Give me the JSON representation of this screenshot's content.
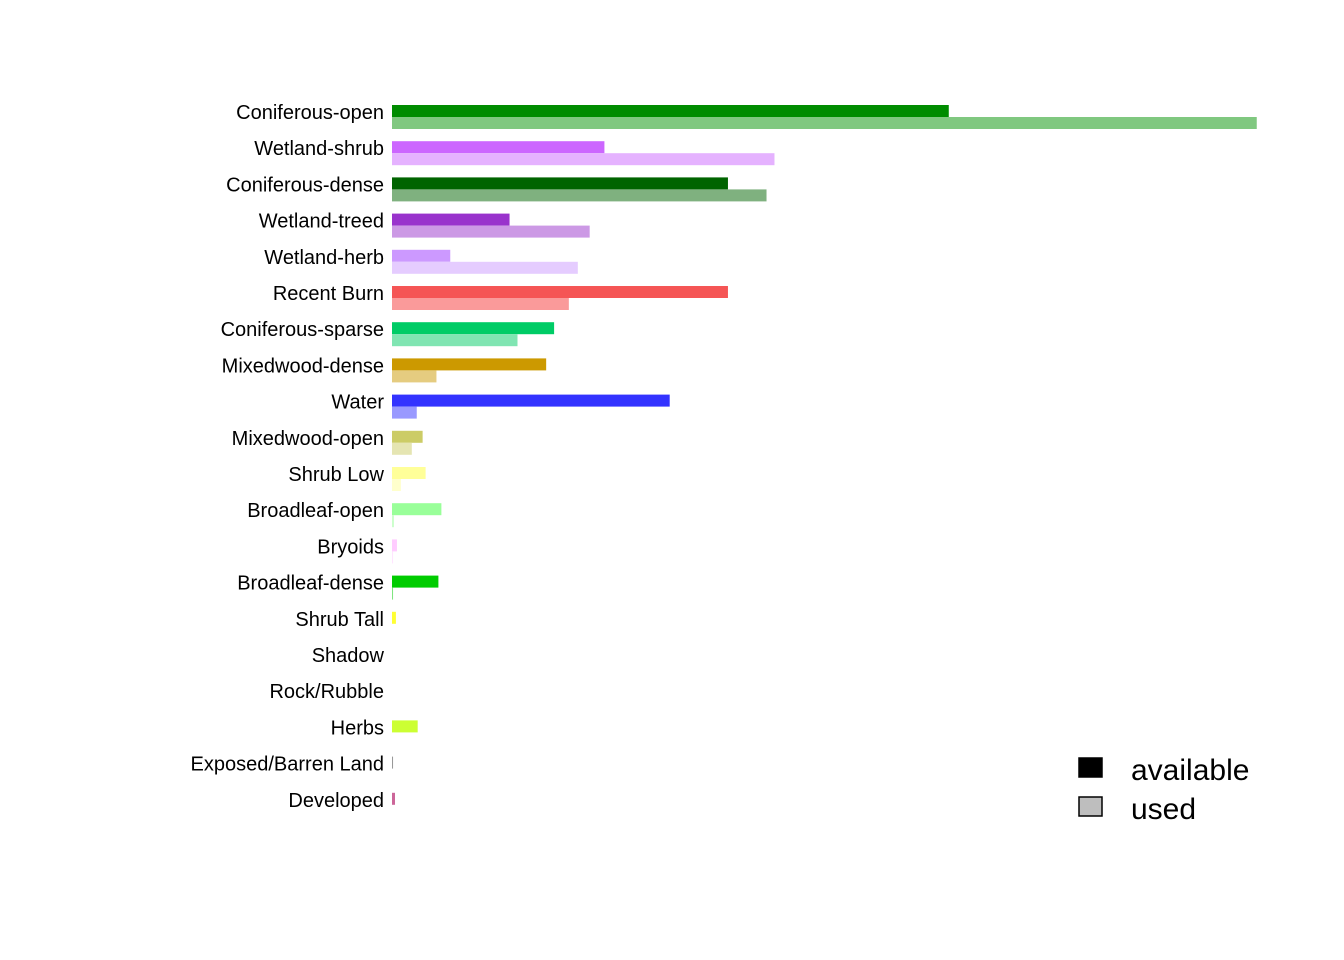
{
  "chart_data": {
    "type": "bar",
    "orientation": "horizontal",
    "axes_visible": false,
    "grid": false,
    "legend_position": "bottom-right",
    "legend": {
      "items": [
        {
          "label": "available",
          "swatch_color": "#000000"
        },
        {
          "label": "used",
          "swatch_color": "#bebebe"
        }
      ]
    },
    "categories": [
      "Coniferous-open",
      "Wetland-shrub",
      "Coniferous-dense",
      "Wetland-treed",
      "Wetland-herb",
      "Recent Burn",
      "Coniferous-sparse",
      "Mixedwood-dense",
      "Water",
      "Mixedwood-open",
      "Shrub Low",
      "Broadleaf-open",
      "Bryoids",
      "Broadleaf-dense",
      "Shrub Tall",
      "Shadow",
      "Rock/Rubble",
      "Herbs",
      "Exposed/Barren Land",
      "Developed"
    ],
    "colors_available": [
      "#008c00",
      "#cc66ff",
      "#006400",
      "#9933cc",
      "#cc99ff",
      "#f55555",
      "#00cc66",
      "#cc9900",
      "#3333ff",
      "#cccc66",
      "#ffff99",
      "#99ff99",
      "#ffccff",
      "#00cc00",
      "#ffff33",
      "#c0c0c0",
      "#a0a0a0",
      "#ccff33",
      "#999999",
      "#cc6699"
    ],
    "colors_used": [
      "#80c880",
      "#e5b2ff",
      "#7fb17f",
      "#cc99e5",
      "#e5ccff",
      "#fa9a9a",
      "#80e5b2",
      "#e5cc80",
      "#9999ff",
      "#e5e5b2",
      "#ffffcc",
      "#ccffcc",
      "#ffe5ff",
      "#80e580",
      "#ffff99",
      "#e0e0e0",
      "#d0d0d0",
      "#e5ff99",
      "#cccccc",
      "#e5b2cc"
    ],
    "series": [
      {
        "name": "available",
        "values": [
          0.4836,
          0.1845,
          0.2918,
          0.1021,
          0.0506,
          0.2918,
          0.1408,
          0.1339,
          0.2412,
          0.0266,
          0.0292,
          0.0429,
          0.0043,
          0.0403,
          0.0034,
          0.0,
          0.0,
          0.0223,
          0.0009,
          0.0026
        ]
      },
      {
        "name": "used",
        "values": [
          0.7511,
          0.3322,
          0.3253,
          0.1717,
          0.1614,
          0.1536,
          0.109,
          0.0386,
          0.0215,
          0.0172,
          0.0077,
          0.0017,
          0.0009,
          0.0009,
          0.0,
          0.0,
          0.0,
          0.0,
          0.0,
          0.0
        ]
      }
    ],
    "xlim": [
      0,
      0.76
    ]
  }
}
